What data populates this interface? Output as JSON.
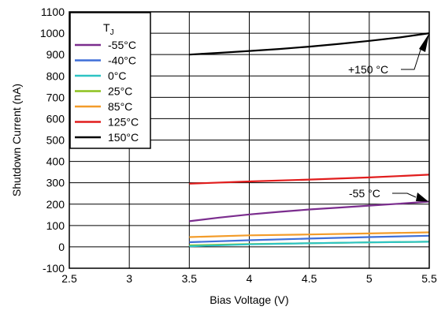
{
  "chart_data": {
    "type": "line",
    "xlabel": "Bias Voltage (V)",
    "ylabel": "Shutdown Current (nA)",
    "xlim": [
      2.5,
      5.5
    ],
    "ylim": [
      -100,
      1100
    ],
    "xticks": [
      2.5,
      3,
      3.5,
      4,
      4.5,
      5,
      5.5
    ],
    "xtick_labels": [
      "2.5",
      "3",
      "3.5",
      "4",
      "4.5",
      "5",
      "5.5"
    ],
    "yticks": [
      -100,
      0,
      100,
      200,
      300,
      400,
      500,
      600,
      700,
      800,
      900,
      1000,
      1100
    ],
    "ytick_labels": [
      "-100",
      "0",
      "100",
      "200",
      "300",
      "400",
      "500",
      "600",
      "700",
      "800",
      "900",
      "1000",
      "1100"
    ],
    "grid": true,
    "legend": {
      "title_main": "T",
      "title_sub": "J",
      "placement": "top-left"
    },
    "series": [
      {
        "name": "-55°C",
        "color": "#7b2d8e",
        "x": [
          3.5,
          3.75,
          4,
          4.25,
          4.5,
          4.75,
          5,
          5.25,
          5.5
        ],
        "y": [
          120,
          137,
          152,
          164,
          175,
          184,
          193,
          202,
          212
        ]
      },
      {
        "name": "-40°C",
        "color": "#3f6fd8",
        "x": [
          3.5,
          4,
          4.5,
          5,
          5.5
        ],
        "y": [
          22,
          31,
          39,
          46,
          52
        ]
      },
      {
        "name": "0°C",
        "color": "#2ec4c4",
        "x": [
          3.5,
          4,
          4.5,
          5,
          5.5
        ],
        "y": [
          3,
          12,
          17,
          21,
          24
        ]
      },
      {
        "name": "25°C",
        "color": "#8dc21f",
        "x": [
          3.5,
          4,
          4.5,
          5,
          5.5
        ],
        "y": [
          7,
          13,
          17,
          21,
          24
        ]
      },
      {
        "name": "85°C",
        "color": "#f39c2a",
        "x": [
          3.5,
          4,
          4.5,
          5,
          5.5
        ],
        "y": [
          46,
          54,
          58,
          63,
          68
        ]
      },
      {
        "name": "125°C",
        "color": "#e11d1d",
        "x": [
          3.5,
          4,
          4.5,
          5,
          5.5
        ],
        "y": [
          296,
          306,
          315,
          325,
          338
        ]
      },
      {
        "name": "150°C",
        "color": "#000000",
        "x": [
          3.5,
          3.75,
          4,
          4.25,
          4.5,
          4.75,
          5,
          5.25,
          5.5
        ],
        "y": [
          900,
          908,
          917,
          926,
          937,
          950,
          964,
          980,
          1000
        ]
      }
    ],
    "annotations": [
      {
        "text": "+150 °C",
        "x": 5.5,
        "y": 1000
      },
      {
        "text": "-55 °C",
        "x": 5.5,
        "y": 212
      }
    ]
  }
}
